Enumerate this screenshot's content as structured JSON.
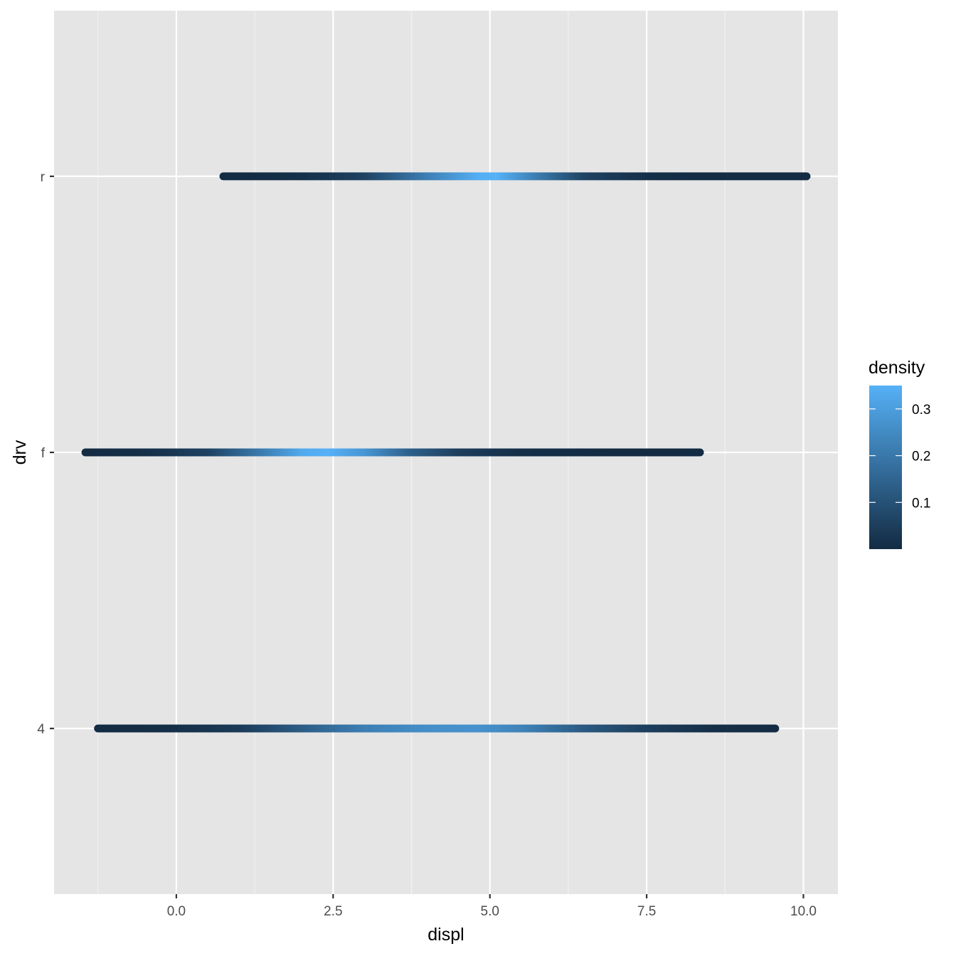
{
  "chart_data": {
    "type": "line",
    "xlabel": "displ",
    "ylabel": "drv",
    "xlim": [
      -1.95,
      10.55
    ],
    "x_ticks": [
      0.0,
      2.5,
      5.0,
      7.5,
      10.0
    ],
    "x_tick_labels": [
      "0.0",
      "2.5",
      "5.0",
      "7.5",
      "10.0"
    ],
    "categories": [
      "4",
      "f",
      "r"
    ],
    "grid": true,
    "background": "#e5e5e5",
    "color_low": "#132b43",
    "color_high": "#56b1f7",
    "series": [
      {
        "name": "4",
        "x_range": [
          -1.25,
          9.55
        ],
        "density_profile": [
          [
            -1.25,
            0.0
          ],
          [
            0.0,
            0.01
          ],
          [
            1.0,
            0.04
          ],
          [
            2.0,
            0.13
          ],
          [
            3.0,
            0.22
          ],
          [
            4.0,
            0.26
          ],
          [
            4.8,
            0.27
          ],
          [
            5.5,
            0.23
          ],
          [
            6.5,
            0.12
          ],
          [
            7.5,
            0.05
          ],
          [
            8.5,
            0.01
          ],
          [
            9.55,
            0.0
          ]
        ]
      },
      {
        "name": "f",
        "x_range": [
          -1.45,
          8.35
        ],
        "density_profile": [
          [
            -1.45,
            0.0
          ],
          [
            -0.5,
            0.01
          ],
          [
            0.5,
            0.06
          ],
          [
            1.3,
            0.2
          ],
          [
            2.0,
            0.33
          ],
          [
            2.4,
            0.35
          ],
          [
            3.0,
            0.28
          ],
          [
            3.7,
            0.14
          ],
          [
            4.5,
            0.05
          ],
          [
            5.5,
            0.01
          ],
          [
            7.0,
            0.0
          ],
          [
            8.35,
            0.0
          ]
        ]
      },
      {
        "name": "r",
        "x_range": [
          0.75,
          10.05
        ],
        "density_profile": [
          [
            0.75,
            0.0
          ],
          [
            2.0,
            0.01
          ],
          [
            3.0,
            0.06
          ],
          [
            4.0,
            0.22
          ],
          [
            4.8,
            0.34
          ],
          [
            5.1,
            0.35
          ],
          [
            5.8,
            0.2
          ],
          [
            6.5,
            0.06
          ],
          [
            7.5,
            0.01
          ],
          [
            8.5,
            0.0
          ],
          [
            10.05,
            0.0
          ]
        ]
      }
    ],
    "legend": {
      "title": "density",
      "position": "right",
      "ticks": [
        0.1,
        0.2,
        0.3
      ],
      "tick_labels": [
        "0.1",
        "0.2",
        "0.3"
      ],
      "range": [
        0.0,
        0.35
      ]
    }
  }
}
